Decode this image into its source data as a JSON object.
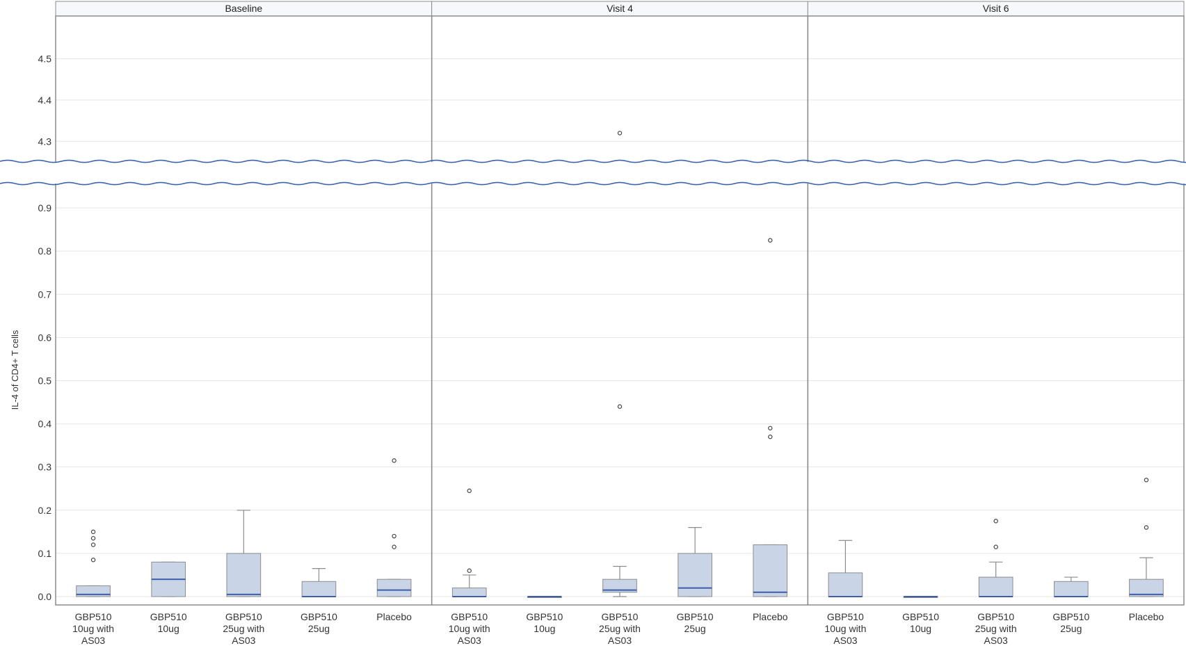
{
  "chart_data": {
    "type": "boxplot",
    "ylabel": "IL-4 of CD4+ T cells",
    "panels": [
      "Baseline",
      "Visit 4",
      "Visit 6"
    ],
    "groups": [
      [
        "GBP510",
        "10ug with",
        "AS03"
      ],
      [
        "GBP510",
        "10ug"
      ],
      [
        "GBP510",
        "25ug with",
        "AS03"
      ],
      [
        "GBP510",
        "25ug"
      ],
      [
        "Placebo"
      ]
    ],
    "y_axis_lower": {
      "range": [
        0,
        0.95
      ],
      "ticks": [
        "0.0",
        "0.1",
        "0.2",
        "0.3",
        "0.4",
        "0.5",
        "0.6",
        "0.7",
        "0.8",
        "0.9"
      ]
    },
    "y_axis_upper": {
      "range": [
        4.25,
        4.6
      ],
      "ticks": [
        "4.3",
        "4.4",
        "4.5"
      ]
    },
    "axis_break": [
      0.95,
      4.25
    ],
    "data": [
      [
        {
          "min": 0.0,
          "q1": 0.0,
          "median": 0.005,
          "q3": 0.025,
          "max": 0.025,
          "outliers": [
            0.085,
            0.12,
            0.135,
            0.15
          ]
        },
        {
          "min": 0.0,
          "q1": 0.0,
          "median": 0.04,
          "q3": 0.08,
          "max": 0.08,
          "outliers": []
        },
        {
          "min": 0.0,
          "q1": 0.0,
          "median": 0.005,
          "q3": 0.1,
          "max": 0.2,
          "outliers": []
        },
        {
          "min": 0.0,
          "q1": 0.0,
          "median": 0.0,
          "q3": 0.035,
          "max": 0.065,
          "outliers": []
        },
        {
          "min": 0.0,
          "q1": 0.0,
          "median": 0.015,
          "q3": 0.04,
          "max": 0.04,
          "outliers": [
            0.115,
            0.14,
            0.315
          ]
        }
      ],
      [
        {
          "min": 0.0,
          "q1": 0.0,
          "median": 0.0,
          "q3": 0.02,
          "max": 0.05,
          "outliers": [
            0.06,
            0.245
          ]
        },
        {
          "min": 0.0,
          "q1": 0.0,
          "median": 0.0,
          "q3": 0.0,
          "max": 0.0,
          "outliers": []
        },
        {
          "min": 0.0,
          "q1": 0.01,
          "median": 0.015,
          "q3": 0.04,
          "max": 0.07,
          "outliers": [
            0.44,
            4.32
          ]
        },
        {
          "min": 0.0,
          "q1": 0.0,
          "median": 0.02,
          "q3": 0.1,
          "max": 0.16,
          "outliers": []
        },
        {
          "min": 0.0,
          "q1": 0.0,
          "median": 0.01,
          "q3": 0.12,
          "max": 0.12,
          "outliers": [
            0.37,
            0.39,
            0.825
          ]
        }
      ],
      [
        {
          "min": 0.0,
          "q1": 0.0,
          "median": 0.0,
          "q3": 0.055,
          "max": 0.13,
          "outliers": []
        },
        {
          "min": 0.0,
          "q1": 0.0,
          "median": 0.0,
          "q3": 0.0,
          "max": 0.0,
          "outliers": []
        },
        {
          "min": 0.0,
          "q1": 0.0,
          "median": 0.0,
          "q3": 0.045,
          "max": 0.08,
          "outliers": [
            0.115,
            0.175
          ]
        },
        {
          "min": 0.0,
          "q1": 0.0,
          "median": 0.0,
          "q3": 0.035,
          "max": 0.045,
          "outliers": []
        },
        {
          "min": 0.0,
          "q1": 0.0,
          "median": 0.005,
          "q3": 0.04,
          "max": 0.09,
          "outliers": [
            0.16,
            0.27
          ]
        }
      ]
    ],
    "colors": {
      "box_fill": "#c9d5e6",
      "box_stroke": "#8c8c8c",
      "median": "#3b5ea8",
      "whisker": "#8c8c8c",
      "outlier": "#444444",
      "grid": "#e6e6e6",
      "panel_border": "#8c8c8c",
      "break_line": "#3b63a8",
      "header_fill": "#f6f8fb",
      "header_text": "#222222",
      "tick_text": "#333333"
    },
    "grid": true
  }
}
